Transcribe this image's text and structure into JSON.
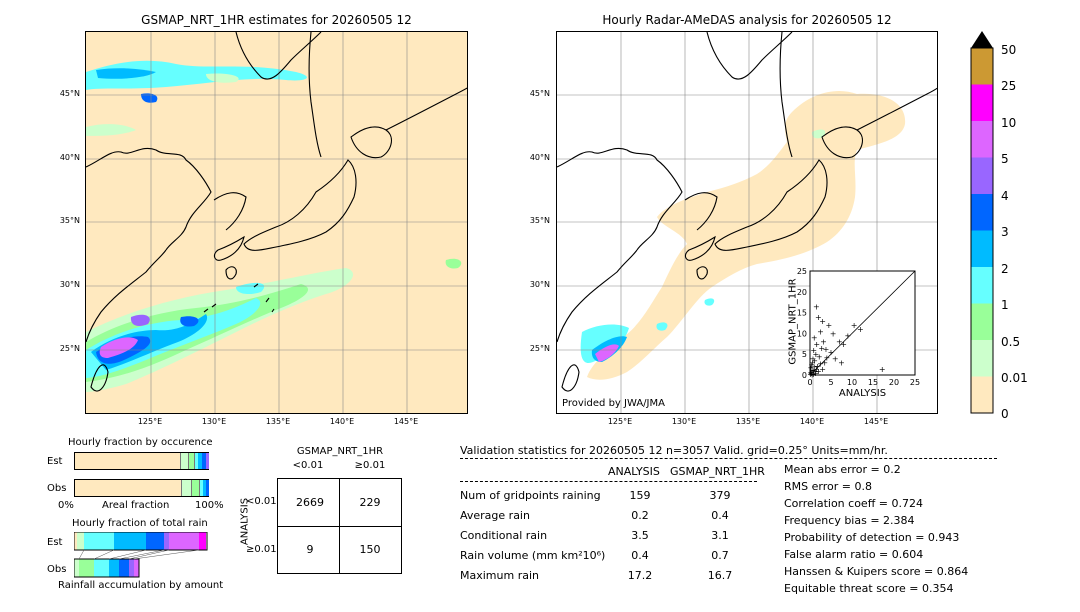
{
  "left_map": {
    "title": "GSMAP_NRT_1HR estimates for 20260505 12",
    "lat_labels": [
      "45°N",
      "40°N",
      "35°N",
      "30°N",
      "25°N"
    ],
    "lon_labels": [
      "125°E",
      "130°E",
      "135°E",
      "140°E",
      "145°E"
    ]
  },
  "right_map": {
    "title": "Hourly Radar-AMeDAS analysis for 20260505 12",
    "lat_labels": [
      "45°N",
      "40°N",
      "35°N",
      "30°N",
      "25°N"
    ],
    "lon_labels": [
      "125°E",
      "130°E",
      "135°E",
      "140°E",
      "145°E"
    ],
    "credit": "Provided by JWA/JMA"
  },
  "colorbar": {
    "labels": [
      "50",
      "25",
      "10",
      "5",
      "4",
      "3",
      "2",
      "1",
      "0.5",
      "0.01",
      "0"
    ],
    "colors": [
      "#cc9933",
      "#ff00ff",
      "#dd66ff",
      "#9966ff",
      "#0066ff",
      "#00bbff",
      "#66ffff",
      "#99ff99",
      "#ccffcc",
      "#ffe9bf"
    ]
  },
  "occurrence": {
    "title": "Hourly fraction by occurence",
    "row_est": "Est",
    "row_obs": "Obs",
    "xmin": "0%",
    "xlabel": "Areal fraction",
    "xmax": "100%"
  },
  "total_rain": {
    "title": "Hourly fraction of total rain",
    "row_est": "Est",
    "row_obs": "Obs",
    "xlabel": "Rainfall accumulation by amount"
  },
  "contingency": {
    "col_title": "GSMAP_NRT_1HR",
    "col_lt": "<0.01",
    "col_ge": "≥0.01",
    "row_title": "ANALYSIS",
    "row_lt": "<0.01",
    "row_ge": "≥0.01",
    "cells": [
      "2669",
      "229",
      "9",
      "150"
    ]
  },
  "validation": {
    "header": "Validation statistics for 20260505 12  n=3057 Valid. grid=0.25° Units=mm/hr.",
    "col_analysis": "ANALYSIS",
    "col_gsmap": "GSMAP_NRT_1HR",
    "rows": [
      {
        "label": "Num of gridpoints raining",
        "analysis": "159",
        "gsmap": "379"
      },
      {
        "label": "Average rain",
        "analysis": "0.2",
        "gsmap": "0.4"
      },
      {
        "label": "Conditional rain",
        "analysis": "3.5",
        "gsmap": "3.1"
      },
      {
        "label": "Rain volume (mm km²10⁶)",
        "analysis": "0.4",
        "gsmap": "0.7"
      },
      {
        "label": "Maximum rain",
        "analysis": "17.2",
        "gsmap": "16.7"
      }
    ],
    "scores": [
      "Mean abs error =    0.2",
      "RMS error =    0.8",
      "Correlation coeff =  0.724",
      "Frequency bias =  2.384",
      "Probability of detection =  0.943",
      "False alarm ratio =  0.604",
      "Hanssen & Kuipers score =  0.864",
      "Equitable threat score =  0.354"
    ]
  },
  "chart_data": {
    "type": "scatter",
    "xlabel": "ANALYSIS",
    "ylabel": "GSMAP_NRT_1HR",
    "xlim": [
      0,
      25
    ],
    "ylim": [
      0,
      25
    ],
    "ticks": [
      "0",
      "5",
      "10",
      "15",
      "20",
      "25"
    ],
    "points": [
      [
        0.3,
        0.5
      ],
      [
        0.5,
        1.2
      ],
      [
        0.8,
        0.3
      ],
      [
        1.0,
        2.0
      ],
      [
        1.2,
        0.8
      ],
      [
        1.5,
        1.5
      ],
      [
        0.4,
        2.5
      ],
      [
        2.0,
        1.0
      ],
      [
        0.6,
        3.0
      ],
      [
        1.8,
        2.2
      ],
      [
        2.5,
        2.8
      ],
      [
        0.2,
        1.8
      ],
      [
        1.1,
        3.5
      ],
      [
        3.0,
        1.5
      ],
      [
        0.7,
        4.0
      ],
      [
        2.2,
        4.5
      ],
      [
        1.4,
        5.0
      ],
      [
        3.5,
        3.0
      ],
      [
        0.9,
        6.0
      ],
      [
        2.8,
        6.5
      ],
      [
        4.0,
        4.2
      ],
      [
        1.6,
        7.5
      ],
      [
        5.0,
        5.5
      ],
      [
        3.2,
        8.0
      ],
      [
        1.0,
        9.0
      ],
      [
        6.0,
        4.0
      ],
      [
        2.5,
        10.5
      ],
      [
        7.0,
        8.0
      ],
      [
        4.5,
        12.0
      ],
      [
        3.0,
        13.0
      ],
      [
        10.5,
        12.0
      ],
      [
        8.0,
        7.5
      ],
      [
        1.5,
        16.5
      ],
      [
        5.5,
        10.0
      ],
      [
        9.0,
        9.5
      ],
      [
        17.2,
        1.5
      ],
      [
        7.5,
        3.0
      ],
      [
        2.0,
        14.0
      ],
      [
        12.0,
        11.0
      ],
      [
        3.8,
        6.2
      ],
      [
        0.1,
        0.2
      ],
      [
        0.2,
        0.7
      ],
      [
        0.5,
        0.1
      ],
      [
        1.3,
        0.5
      ],
      [
        0.9,
        1.1
      ]
    ]
  }
}
